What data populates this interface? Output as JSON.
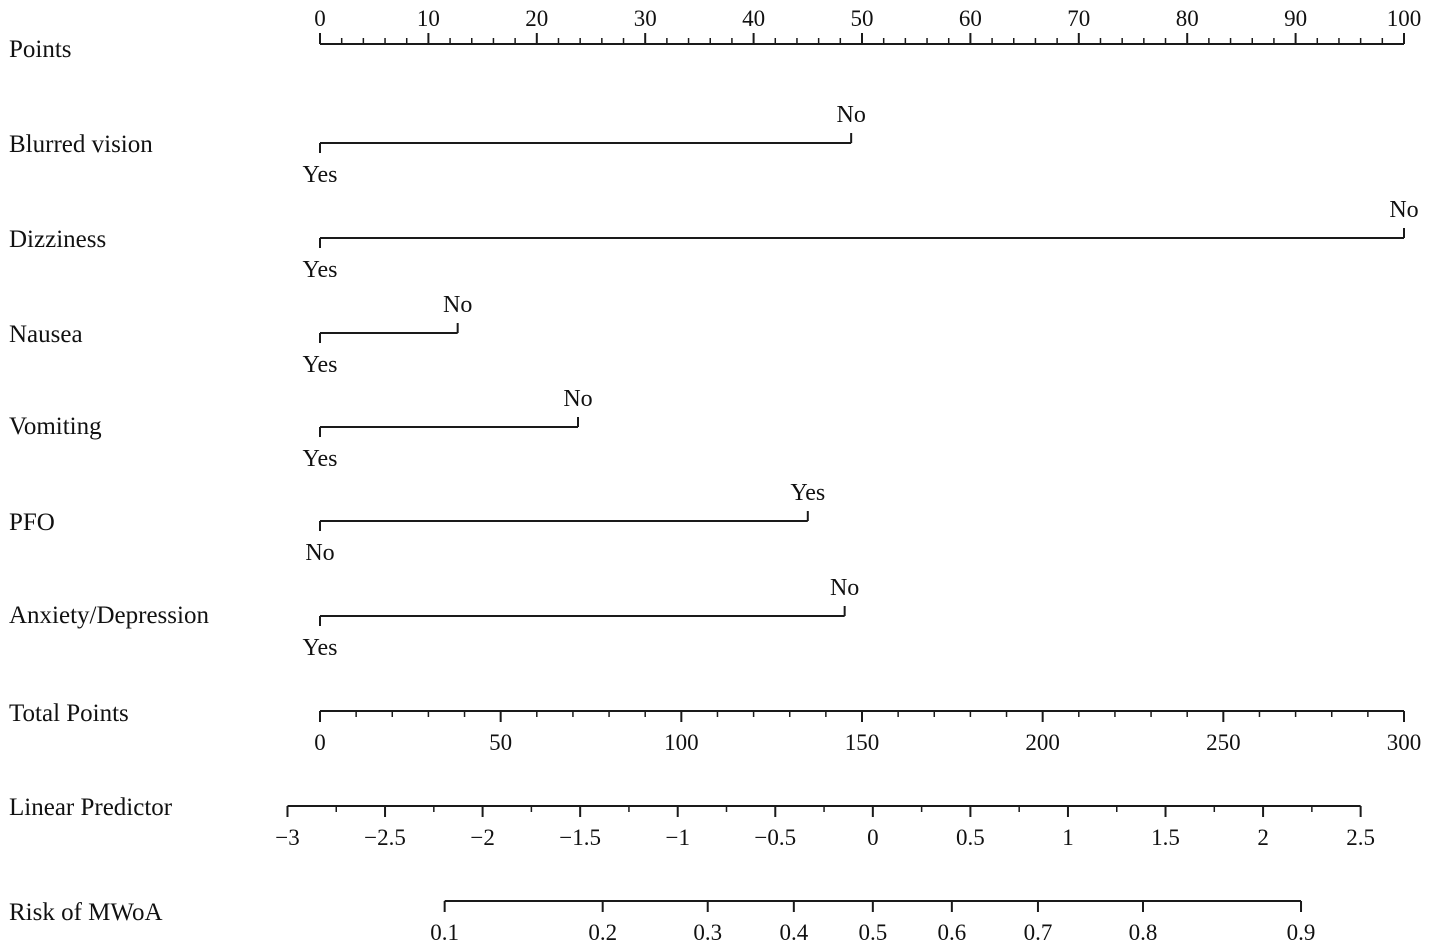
{
  "chart_data": {
    "type": "nomogram",
    "title": "",
    "rows": [
      {
        "label": "Points",
        "kind": "axis",
        "range": [
          0,
          100
        ],
        "ticks": [
          0,
          10,
          20,
          30,
          40,
          50,
          60,
          70,
          80,
          90,
          100
        ],
        "minor_step": 2,
        "label_position": "above"
      },
      {
        "label": "Blurred vision",
        "kind": "variable",
        "levels": [
          {
            "name": "Yes",
            "points": 0,
            "label_position": "below"
          },
          {
            "name": "No",
            "points": 49,
            "label_position": "above"
          }
        ]
      },
      {
        "label": "Dizziness",
        "kind": "variable",
        "levels": [
          {
            "name": "Yes",
            "points": 0,
            "label_position": "below"
          },
          {
            "name": "No",
            "points": 100,
            "label_position": "above"
          }
        ]
      },
      {
        "label": "Nausea",
        "kind": "variable",
        "levels": [
          {
            "name": "Yes",
            "points": 0,
            "label_position": "below"
          },
          {
            "name": "No",
            "points": 12.7,
            "label_position": "above"
          }
        ]
      },
      {
        "label": "Vomiting",
        "kind": "variable",
        "levels": [
          {
            "name": "Yes",
            "points": 0,
            "label_position": "below"
          },
          {
            "name": "No",
            "points": 23.8,
            "label_position": "above"
          }
        ]
      },
      {
        "label": "PFO",
        "kind": "variable",
        "levels": [
          {
            "name": "No",
            "points": 0,
            "label_position": "below"
          },
          {
            "name": "Yes",
            "points": 45,
            "label_position": "above"
          }
        ]
      },
      {
        "label": "Anxiety/Depression",
        "kind": "variable",
        "levels": [
          {
            "name": "Yes",
            "points": 0,
            "label_position": "below"
          },
          {
            "name": "No",
            "points": 48.4,
            "label_position": "above"
          }
        ]
      },
      {
        "label": "Total Points",
        "kind": "axis",
        "range": [
          0,
          300
        ],
        "ticks": [
          0,
          50,
          100,
          150,
          200,
          250,
          300
        ],
        "minor_step": 10,
        "label_position": "below"
      },
      {
        "label": "Linear Predictor",
        "kind": "axis",
        "ticks": [
          -3,
          -2.5,
          -2,
          -1.5,
          -1,
          -0.5,
          0,
          0.5,
          1,
          1.5,
          2,
          2.5
        ],
        "tick_text": [
          "−3",
          "−2.5",
          "−2",
          "−1.5",
          "−1",
          "−0.5",
          "0",
          "0.5",
          "1",
          "1.5",
          "2",
          "2.5"
        ],
        "total_points_at": [
          -9,
          288
        ],
        "line_extent": [
          -9,
          288
        ],
        "minor_step": 0.25,
        "label_position": "below"
      },
      {
        "label": "Risk of MWoA",
        "kind": "axis",
        "ticks": [
          0.1,
          0.2,
          0.3,
          0.4,
          0.5,
          0.6,
          0.7,
          0.8,
          0.9
        ],
        "tick_text": [
          "0.1",
          "0.2",
          "0.3",
          "0.4",
          "0.5",
          "0.6",
          "0.7",
          "0.8",
          "0.9"
        ],
        "total_points_at": [
          34.5,
          271.5
        ],
        "scale": "logit",
        "label_position": "below"
      }
    ]
  }
}
